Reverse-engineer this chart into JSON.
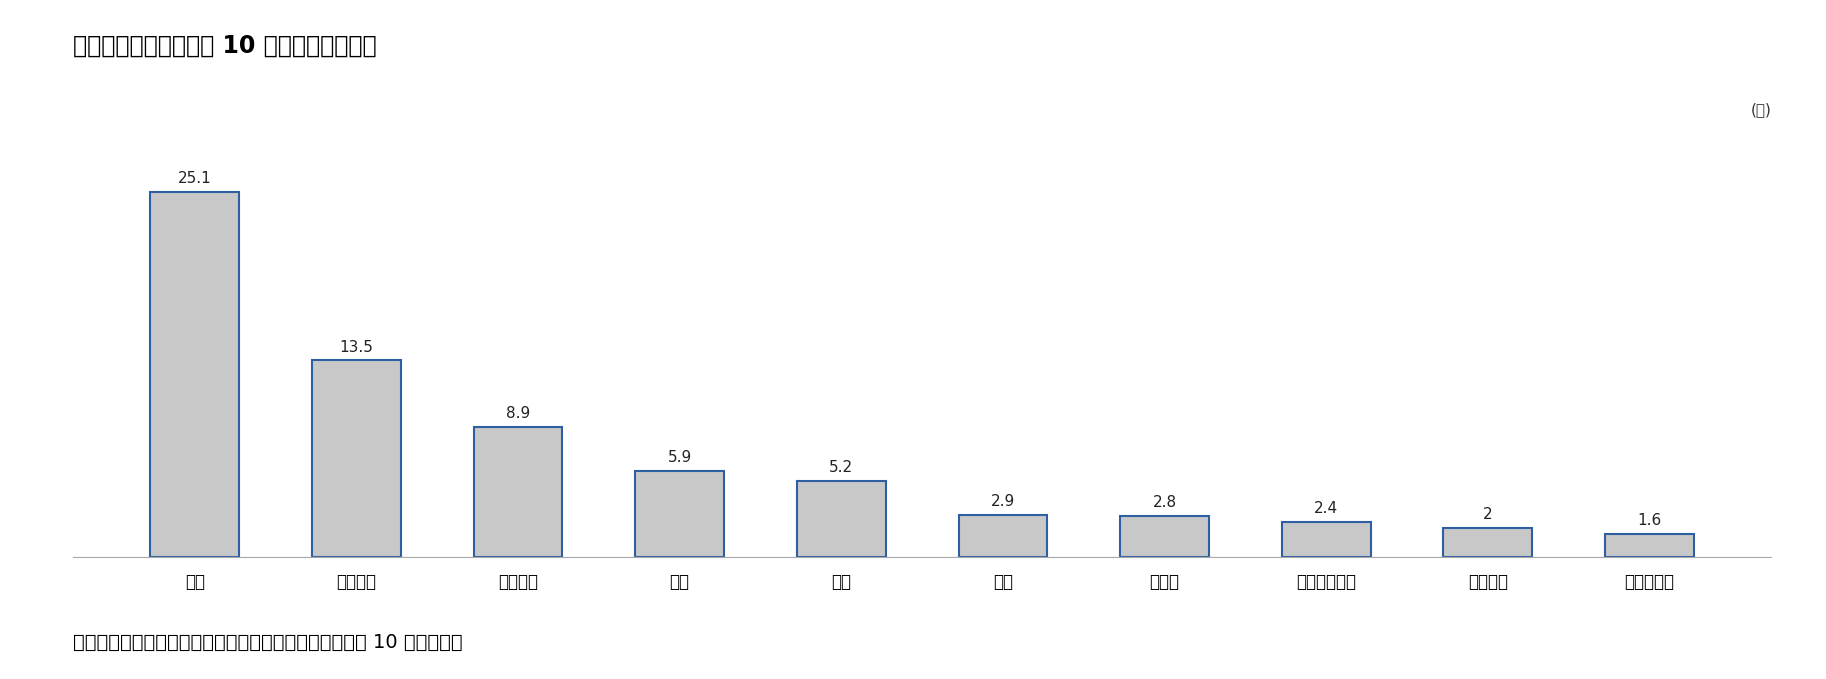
{
  "title": "図表２　韓国における 10 大輸出国のシェア",
  "categories": [
    "中国",
    "アメリカ",
    "ベトナム",
    "香港",
    "日本",
    "台湾",
    "インド",
    "シンガポール",
    "メキシコ",
    "マレーシア"
  ],
  "values": [
    25.1,
    13.5,
    8.9,
    5.9,
    5.2,
    2.9,
    2.8,
    2.4,
    2.0,
    1.6
  ],
  "bar_color": "#c8c8c8",
  "bar_edge_color": "#2e5fa3",
  "bar_edge_width": 1.5,
  "ylabel_unit": "(％)",
  "source_text": "出所）産業通商資源部・関税庁・韓国貿易協会『韓国の 10 大貿易国』",
  "ylim": [
    0,
    28
  ],
  "background_color": "#ffffff",
  "title_fontsize": 17,
  "label_fontsize": 11,
  "tick_fontsize": 12,
  "source_fontsize": 14
}
